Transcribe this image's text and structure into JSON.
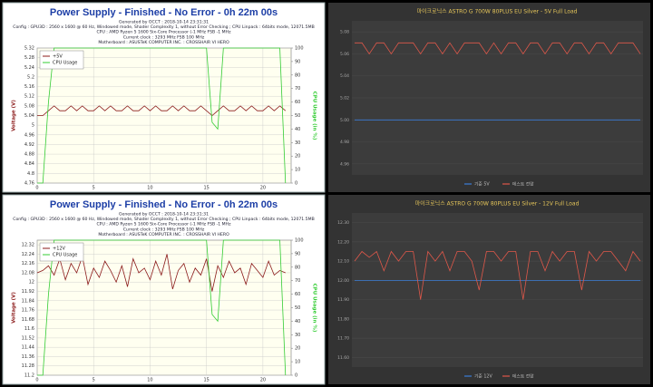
{
  "chart_data": [
    {
      "type": "line",
      "title": "Power Supply - Finished - No Error - 0h 22m 00s",
      "info": [
        "Generated by OCCT : 2018-10-14 23:31:31",
        "Config : GPU3D : 2560 x 1600 @ 60 Hz, Windowed mode, Shader Complexity 1, without Error Checking ; CPU Linpack : 64bits mode, 12071.5MB",
        "CPU : AMD Ryzen 5 1600 Six-Core Processor (-1 MHz FSB -1 MHz",
        "Current clock : 3293 MHz FSB 100 MHz",
        "Motherboard : ASUSTeK COMPUTER INC. : CROSSHAIR VI HERO"
      ],
      "ylabel": "Voltage (V)",
      "y2label": "CPU Usage (in %)",
      "x": [
        0,
        0.5,
        1,
        1.5,
        2,
        2.5,
        3,
        3.5,
        4,
        4.5,
        5,
        5.5,
        6,
        6.5,
        7,
        7.5,
        8,
        8.5,
        9,
        9.5,
        10,
        10.5,
        11,
        11.5,
        12,
        12.5,
        13,
        13.5,
        14,
        14.5,
        15,
        15.5,
        16,
        16.5,
        17,
        17.5,
        18,
        18.5,
        19,
        19.5,
        20,
        20.5,
        21,
        21.5,
        22
      ],
      "xlim": [
        0,
        22.5
      ],
      "xticks": [
        0,
        5,
        10,
        15,
        20
      ],
      "ylim": [
        4.76,
        5.32
      ],
      "yticks": [
        4.76,
        4.8,
        4.84,
        4.88,
        4.92,
        4.96,
        5,
        5.04,
        5.08,
        5.12,
        5.16,
        5.2,
        5.24,
        5.28,
        5.32
      ],
      "y2lim": [
        0,
        100
      ],
      "y2ticks": [
        0,
        10,
        20,
        30,
        40,
        50,
        60,
        70,
        80,
        90,
        100
      ],
      "grid": true,
      "legend": "upper left",
      "series": [
        {
          "name": "+5V",
          "color": "#8b1a1a",
          "values": [
            5.04,
            5.04,
            5.06,
            5.08,
            5.06,
            5.06,
            5.08,
            5.06,
            5.08,
            5.06,
            5.06,
            5.08,
            5.06,
            5.08,
            5.06,
            5.06,
            5.08,
            5.06,
            5.06,
            5.08,
            5.06,
            5.08,
            5.06,
            5.06,
            5.08,
            5.06,
            5.08,
            5.06,
            5.06,
            5.08,
            5.06,
            5.04,
            5.06,
            5.08,
            5.06,
            5.06,
            5.08,
            5.06,
            5.08,
            5.06,
            5.06,
            5.08,
            5.06,
            5.08,
            5.06
          ]
        },
        {
          "name": "CPU Usage",
          "color": "#33cc33",
          "axis": "y2",
          "values": [
            0,
            0,
            60,
            100,
            100,
            100,
            100,
            100,
            100,
            100,
            100,
            100,
            100,
            100,
            100,
            100,
            100,
            100,
            100,
            100,
            100,
            100,
            100,
            100,
            100,
            100,
            100,
            100,
            100,
            100,
            100,
            45,
            40,
            100,
            100,
            100,
            100,
            100,
            100,
            100,
            100,
            100,
            100,
            100,
            0
          ]
        }
      ]
    },
    {
      "type": "line",
      "title": "마이크로닉스 ASTRO G 700W 80PLUS EU Silver - 5V Full Load",
      "ylim": [
        4.95,
        5.09
      ],
      "yticks": [
        4.96,
        4.98,
        {
          "value": 5,
          "label": "5.00"
        },
        5.02,
        5.04,
        5.06,
        5.08
      ],
      "grid": true,
      "legend": "bottom",
      "series": [
        {
          "name": "기준 5V",
          "color": "#3b7dd8",
          "values": [
            5,
            5,
            5,
            5,
            5,
            5,
            5,
            5,
            5,
            5,
            5,
            5,
            5,
            5,
            5,
            5,
            5,
            5,
            5,
            5,
            5,
            5,
            5,
            5,
            5,
            5,
            5,
            5,
            5,
            5,
            5,
            5,
            5,
            5,
            5,
            5,
            5,
            5,
            5,
            5
          ]
        },
        {
          "name": "테스트 전압",
          "color": "#e0584a",
          "values": [
            5.07,
            5.07,
            5.06,
            5.07,
            5.07,
            5.06,
            5.07,
            5.07,
            5.07,
            5.06,
            5.07,
            5.07,
            5.06,
            5.07,
            5.06,
            5.07,
            5.07,
            5.07,
            5.06,
            5.07,
            5.06,
            5.07,
            5.07,
            5.06,
            5.07,
            5.07,
            5.06,
            5.07,
            5.07,
            5.06,
            5.07,
            5.07,
            5.06,
            5.07,
            5.07,
            5.06,
            5.07,
            5.07,
            5.07,
            5.06
          ]
        }
      ]
    },
    {
      "type": "line",
      "title": "Power Supply - Finished - No Error - 0h 22m 00s",
      "info": [
        "Generated by OCCT : 2018-10-14 23:31:31",
        "Config : GPU3D : 2560 x 1600 @ 60 Hz, Windowed mode, Shader Complexity 1, without Error Checking ; CPU Linpack : 64bits mode, 12071.5MB",
        "CPU : AMD Ryzen 5 1600 Six-Core Processor (-1 MHz FSB -1 MHz",
        "Current clock : 3293 MHz FSB 100 MHz",
        "Motherboard : ASUSTeK COMPUTER INC. : CROSSHAIR VI HERO"
      ],
      "ylabel": "Voltage (V)",
      "y2label": "CPU Usage (in %)",
      "x": [
        0,
        0.5,
        1,
        1.5,
        2,
        2.5,
        3,
        3.5,
        4,
        4.5,
        5,
        5.5,
        6,
        6.5,
        7,
        7.5,
        8,
        8.5,
        9,
        9.5,
        10,
        10.5,
        11,
        11.5,
        12,
        12.5,
        13,
        13.5,
        14,
        14.5,
        15,
        15.5,
        16,
        16.5,
        17,
        17.5,
        18,
        18.5,
        19,
        19.5,
        20,
        20.5,
        21,
        21.5,
        22
      ],
      "xlim": [
        0,
        22.5
      ],
      "xticks": [
        0,
        5,
        10,
        15,
        20
      ],
      "ylim": [
        11.2,
        12.36
      ],
      "yticks": [
        11.2,
        11.28,
        11.36,
        11.44,
        11.52,
        11.6,
        11.68,
        11.76,
        11.84,
        11.92,
        12,
        12.08,
        12.16,
        12.24,
        12.32
      ],
      "y2lim": [
        0,
        100
      ],
      "y2ticks": [
        0,
        10,
        20,
        30,
        40,
        50,
        60,
        70,
        80,
        90,
        100
      ],
      "grid": true,
      "legend": "upper left",
      "series": [
        {
          "name": "+12V",
          "color": "#8b1a1a",
          "values": [
            12.08,
            12.1,
            12.14,
            12.06,
            12.2,
            12.02,
            12.16,
            12.08,
            12.22,
            11.98,
            12.12,
            12.04,
            12.18,
            12.1,
            12,
            12.14,
            11.96,
            12.2,
            12.08,
            12.12,
            12.02,
            12.18,
            12.06,
            12.24,
            11.94,
            12.1,
            12.16,
            12,
            12.12,
            12.06,
            12.2,
            11.92,
            12.14,
            12.04,
            12.18,
            12.08,
            12.12,
            11.98,
            12.16,
            12.1,
            12.04,
            12.18,
            12.06,
            12.1,
            12.08
          ]
        },
        {
          "name": "CPU Usage",
          "color": "#33cc33",
          "axis": "y2",
          "values": [
            0,
            0,
            60,
            100,
            100,
            100,
            100,
            100,
            100,
            100,
            100,
            100,
            100,
            100,
            100,
            100,
            100,
            100,
            100,
            100,
            100,
            100,
            100,
            100,
            100,
            100,
            100,
            100,
            100,
            100,
            100,
            45,
            40,
            100,
            100,
            100,
            100,
            100,
            100,
            100,
            100,
            100,
            100,
            100,
            0
          ]
        }
      ]
    },
    {
      "type": "line",
      "title": "마이크로닉스 ASTRO G 700W 80PLUS EU Silver - 12V Full Load",
      "ylim": [
        11.55,
        12.35
      ],
      "yticks": [
        {
          "value": 11.6,
          "label": "11.60"
        },
        {
          "value": 11.7,
          "label": "11.70"
        },
        {
          "value": 11.8,
          "label": "11.80"
        },
        {
          "value": 11.9,
          "label": "11.90"
        },
        {
          "value": 12,
          "label": "12.00"
        },
        {
          "value": 12.1,
          "label": "12.10"
        },
        {
          "value": 12.2,
          "label": "12.20"
        },
        {
          "value": 12.3,
          "label": "12.30"
        }
      ],
      "grid": true,
      "legend": "bottom",
      "series": [
        {
          "name": "기준 12V",
          "color": "#3b7dd8",
          "values": [
            12,
            12,
            12,
            12,
            12,
            12,
            12,
            12,
            12,
            12,
            12,
            12,
            12,
            12,
            12,
            12,
            12,
            12,
            12,
            12,
            12,
            12,
            12,
            12,
            12,
            12,
            12,
            12,
            12,
            12,
            12,
            12,
            12,
            12,
            12,
            12,
            12,
            12,
            12,
            12
          ]
        },
        {
          "name": "테스트 전압",
          "color": "#e0584a",
          "values": [
            12.1,
            12.15,
            12.12,
            12.15,
            12.05,
            12.15,
            12.1,
            12.15,
            12.15,
            11.9,
            12.15,
            12.1,
            12.15,
            12.05,
            12.15,
            12.15,
            12.1,
            11.95,
            12.15,
            12.15,
            12.1,
            12.15,
            12.15,
            11.9,
            12.15,
            12.15,
            12.05,
            12.15,
            12.1,
            12.15,
            12.15,
            11.95,
            12.15,
            12.1,
            12.15,
            12.15,
            12.1,
            12.05,
            12.15,
            12.1
          ]
        }
      ]
    }
  ]
}
